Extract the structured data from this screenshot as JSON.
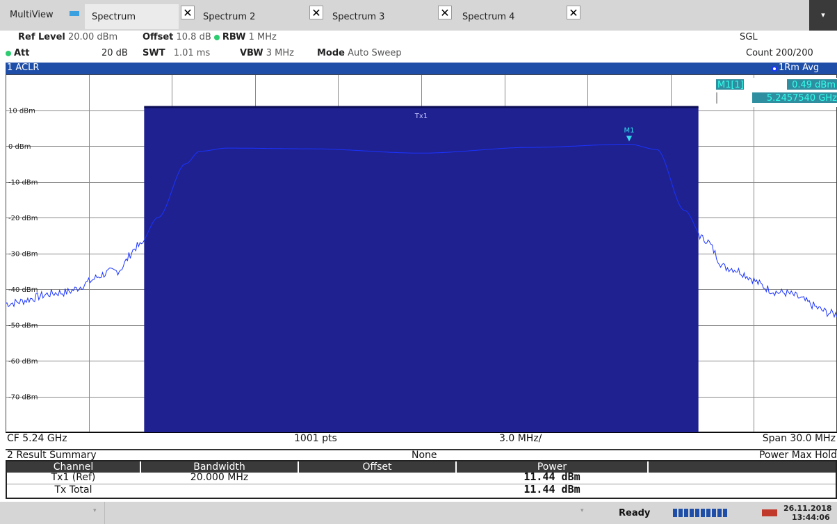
{
  "tabs": {
    "multiview": "MultiView",
    "items": [
      {
        "label": "Spectrum",
        "close": "✕"
      },
      {
        "label": "Spectrum 2",
        "close": "✕"
      },
      {
        "label": "Spectrum 3",
        "close": "✕"
      },
      {
        "label": "Spectrum 4",
        "close": "✕"
      }
    ],
    "dropdown": "▾"
  },
  "settings": {
    "ref_level_label": "Ref Level",
    "ref_level_value": "20.00 dBm",
    "offset_label": "Offset",
    "offset_value": "10.8 dB",
    "rbw_label": "RBW",
    "rbw_value": "1 MHz",
    "att_label": "Att",
    "att_value": "20 dB",
    "swt_label": "SWT",
    "swt_value": "1.01 ms",
    "vbw_label": "VBW",
    "vbw_value": "3 MHz",
    "mode_label": "Mode",
    "mode_value": "Auto Sweep",
    "sgl": "SGL",
    "count": "Count 200/200"
  },
  "window1": {
    "title": "1 ACLR",
    "trace": "1Rm Avg",
    "marker_label": "M1[1]",
    "marker_level": "0.49 dBm",
    "marker_freq": "5.2457540 GHz",
    "channel_label": "Tx1",
    "marker_tag": "M1"
  },
  "colors": {
    "channel_fill": "#1f2190",
    "trace": "#1a33ff",
    "marker": "#33ddee",
    "title_bar": "#1f4ea8"
  },
  "chart_data": {
    "type": "line",
    "ytick_labels": [
      "10 dBm",
      "0 dBm",
      "-10 dBm",
      "-20 dBm",
      "-30 dBm",
      "-40 dBm",
      "-50 dBm",
      "-60 dBm",
      "-70 dBm"
    ],
    "yticks": [
      10,
      0,
      -10,
      -20,
      -30,
      -40,
      -50,
      -60,
      -70
    ],
    "ylim": [
      -80,
      20
    ],
    "center_freq": "CF 5.24 GHz",
    "points": "1001 pts",
    "per_div": "3.0 MHz/",
    "span": "Span 30.0 MHz",
    "xlim_mhz": [
      -15,
      15
    ],
    "channel_mhz": [
      -10,
      10
    ],
    "channel_power_dbm": 11.44,
    "series": [
      {
        "x_mhz": [
          -15,
          -13,
          -11,
          -10.2,
          -9.5,
          -8.5,
          -8,
          -7,
          -4,
          0,
          4,
          7.5,
          8.5,
          9.5,
          10.2,
          11,
          13,
          15
        ],
        "y_dbm": [
          -44,
          -41,
          -35,
          -28,
          -20,
          -5,
          -1.5,
          -0.6,
          -0.8,
          -2,
          -0.4,
          0.49,
          -1,
          -18,
          -26,
          -34,
          -41,
          -47
        ]
      }
    ]
  },
  "summary": {
    "title": "2 Result Summary",
    "middle": "None",
    "right": "Power Max Hold",
    "headers": [
      "Channel",
      "Bandwidth",
      "Offset",
      "Power"
    ],
    "rows": [
      {
        "channel": "Tx1 (Ref)",
        "bandwidth": "20.000 MHz",
        "offset": "",
        "power": "11.44 dBm"
      },
      {
        "channel": "Tx Total",
        "bandwidth": "",
        "offset": "",
        "power": "11.44 dBm"
      }
    ]
  },
  "status": {
    "ready": "Ready",
    "date": "26.11.2018",
    "time": "13:44:06"
  }
}
